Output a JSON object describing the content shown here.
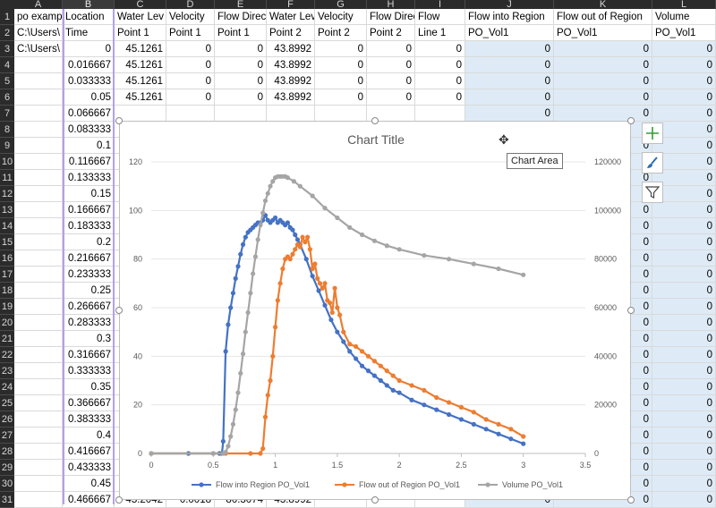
{
  "columns": [
    "A",
    "B",
    "C",
    "D",
    "E",
    "F",
    "G",
    "H",
    "I",
    "J",
    "K",
    "L"
  ],
  "row_numbers": [
    "1",
    "2",
    "3",
    "4",
    "5",
    "6",
    "7",
    "8",
    "9",
    "10",
    "11",
    "12",
    "13",
    "14",
    "15",
    "16",
    "17",
    "18",
    "19",
    "20",
    "21",
    "22",
    "23",
    "24",
    "25",
    "26",
    "27",
    "28",
    "29",
    "30",
    "31"
  ],
  "header_row1": [
    "po examp",
    "Location",
    "Water Lev",
    "Velocity",
    "Flow Direc",
    "Water Lev",
    "Velocity",
    "Flow Direc",
    "Flow",
    "Flow into Region",
    "Flow out of Region",
    "Volume"
  ],
  "header_row2": [
    "C:\\Users\\",
    "Time",
    "Point 1",
    "Point 1",
    "Point 1",
    "Point 2",
    "Point 2",
    "Point 2",
    "Line 1",
    "PO_Vol1",
    "PO_Vol1",
    "PO_Vol1"
  ],
  "row3_a": "C:\\Users\\",
  "data_rows": [
    [
      "0",
      "45.1261",
      "0",
      "0",
      "43.8992",
      "0",
      "0",
      "0",
      "0",
      "0",
      "0"
    ],
    [
      "0.016667",
      "45.1261",
      "0",
      "0",
      "43.8992",
      "0",
      "0",
      "0",
      "0",
      "0",
      "0"
    ],
    [
      "0.033333",
      "45.1261",
      "0",
      "0",
      "43.8992",
      "0",
      "0",
      "0",
      "0",
      "0",
      "0"
    ],
    [
      "0.05",
      "45.1261",
      "0",
      "0",
      "43.8992",
      "0",
      "0",
      "0",
      "0",
      "0",
      "0"
    ]
  ],
  "time_col_rest": [
    "0.066667",
    "0.083333",
    "0.1",
    "0.116667",
    "0.133333",
    "0.15",
    "0.166667",
    "0.183333",
    "0.2",
    "0.216667",
    "0.233333",
    "0.25",
    "0.266667",
    "0.283333",
    "0.3",
    "0.316667",
    "0.333333",
    "0.35",
    "0.366667",
    "0.383333",
    "0.4",
    "0.416667",
    "0.433333",
    "0.45",
    "0.466667"
  ],
  "right_col_zeros": "0",
  "last_row_partial": [
    "45.2042",
    "0.0018",
    "80.3074",
    "43.8992"
  ],
  "tooltip": "Chart Area",
  "chart_buttons": [
    "plus-icon",
    "brush-icon",
    "filter-icon"
  ],
  "chart_data": {
    "type": "line",
    "title": "Chart Title",
    "x_ticks": [
      "0",
      "0.5",
      "1",
      "1.5",
      "2",
      "2.5",
      "3",
      "3.5"
    ],
    "y_left_ticks": [
      "0",
      "20",
      "40",
      "60",
      "80",
      "100",
      "120"
    ],
    "y_right_ticks": [
      "0",
      "20000",
      "40000",
      "60000",
      "80000",
      "100000",
      "120000"
    ],
    "xlim": [
      0,
      3.5
    ],
    "ylim_left": [
      0,
      120
    ],
    "ylim_right": [
      0,
      120000
    ],
    "legend_position": "bottom",
    "series": [
      {
        "name": "Flow into Region PO_Vol1",
        "axis": "left",
        "color": "#4472c4",
        "points": [
          [
            0,
            0
          ],
          [
            0.3,
            0
          ],
          [
            0.55,
            0
          ],
          [
            0.57,
            0
          ],
          [
            0.58,
            5
          ],
          [
            0.6,
            42
          ],
          [
            0.62,
            53
          ],
          [
            0.64,
            60
          ],
          [
            0.66,
            66
          ],
          [
            0.68,
            72
          ],
          [
            0.7,
            77
          ],
          [
            0.72,
            82
          ],
          [
            0.74,
            86
          ],
          [
            0.76,
            89
          ],
          [
            0.78,
            91
          ],
          [
            0.8,
            92
          ],
          [
            0.82,
            93
          ],
          [
            0.84,
            94
          ],
          [
            0.86,
            95
          ],
          [
            0.88,
            95
          ],
          [
            0.9,
            96
          ],
          [
            0.92,
            98
          ],
          [
            0.94,
            96
          ],
          [
            0.96,
            95
          ],
          [
            0.98,
            96
          ],
          [
            1.0,
            97
          ],
          [
            1.02,
            95
          ],
          [
            1.04,
            96
          ],
          [
            1.06,
            95
          ],
          [
            1.08,
            94
          ],
          [
            1.1,
            95
          ],
          [
            1.12,
            93
          ],
          [
            1.14,
            92
          ],
          [
            1.16,
            90
          ],
          [
            1.18,
            88
          ],
          [
            1.2,
            86
          ],
          [
            1.25,
            80
          ],
          [
            1.3,
            73
          ],
          [
            1.35,
            67
          ],
          [
            1.4,
            61
          ],
          [
            1.45,
            55
          ],
          [
            1.5,
            50
          ],
          [
            1.55,
            46
          ],
          [
            1.6,
            42
          ],
          [
            1.65,
            39
          ],
          [
            1.7,
            36
          ],
          [
            1.75,
            34
          ],
          [
            1.8,
            32
          ],
          [
            1.85,
            30
          ],
          [
            1.9,
            28
          ],
          [
            1.95,
            26
          ],
          [
            2.0,
            25
          ],
          [
            2.1,
            22
          ],
          [
            2.2,
            20
          ],
          [
            2.3,
            18
          ],
          [
            2.4,
            16
          ],
          [
            2.5,
            14
          ],
          [
            2.6,
            12
          ],
          [
            2.7,
            10
          ],
          [
            2.8,
            8
          ],
          [
            2.9,
            6
          ],
          [
            3.0,
            4
          ]
        ]
      },
      {
        "name": "Flow out of Region PO_Vol1",
        "axis": "left",
        "color": "#ed7d31",
        "points": [
          [
            0,
            0
          ],
          [
            0.5,
            0
          ],
          [
            0.6,
            0
          ],
          [
            0.8,
            0
          ],
          [
            0.88,
            0
          ],
          [
            0.9,
            2
          ],
          [
            0.92,
            15
          ],
          [
            0.94,
            24
          ],
          [
            0.96,
            30
          ],
          [
            0.98,
            40
          ],
          [
            1.0,
            52
          ],
          [
            1.02,
            63
          ],
          [
            1.04,
            70
          ],
          [
            1.06,
            76
          ],
          [
            1.08,
            80
          ],
          [
            1.1,
            81
          ],
          [
            1.12,
            80
          ],
          [
            1.14,
            82
          ],
          [
            1.16,
            84
          ],
          [
            1.18,
            86
          ],
          [
            1.2,
            85
          ],
          [
            1.22,
            89
          ],
          [
            1.24,
            87
          ],
          [
            1.26,
            89
          ],
          [
            1.28,
            84
          ],
          [
            1.3,
            76
          ],
          [
            1.32,
            78
          ],
          [
            1.34,
            72
          ],
          [
            1.36,
            70
          ],
          [
            1.38,
            68
          ],
          [
            1.4,
            70
          ],
          [
            1.42,
            63
          ],
          [
            1.44,
            62
          ],
          [
            1.46,
            58
          ],
          [
            1.48,
            68
          ],
          [
            1.5,
            60
          ],
          [
            1.52,
            57
          ],
          [
            1.55,
            50
          ],
          [
            1.6,
            45
          ],
          [
            1.65,
            44
          ],
          [
            1.7,
            42
          ],
          [
            1.75,
            40
          ],
          [
            1.8,
            38
          ],
          [
            1.85,
            36
          ],
          [
            1.9,
            34
          ],
          [
            1.95,
            32
          ],
          [
            2.0,
            30
          ],
          [
            2.1,
            28
          ],
          [
            2.2,
            26
          ],
          [
            2.3,
            23
          ],
          [
            2.4,
            21
          ],
          [
            2.5,
            19
          ],
          [
            2.6,
            17
          ],
          [
            2.7,
            14
          ],
          [
            2.8,
            12
          ],
          [
            2.9,
            10
          ],
          [
            3.0,
            7
          ]
        ]
      },
      {
        "name": "Volume PO_Vol1",
        "axis": "right",
        "color": "#a5a5a5",
        "points": [
          [
            0,
            0
          ],
          [
            0.5,
            0
          ],
          [
            0.58,
            0
          ],
          [
            0.6,
            500
          ],
          [
            0.62,
            3000
          ],
          [
            0.64,
            7000
          ],
          [
            0.66,
            12000
          ],
          [
            0.68,
            18000
          ],
          [
            0.7,
            25000
          ],
          [
            0.72,
            33000
          ],
          [
            0.74,
            41000
          ],
          [
            0.76,
            50000
          ],
          [
            0.78,
            58000
          ],
          [
            0.8,
            66000
          ],
          [
            0.82,
            74000
          ],
          [
            0.84,
            81000
          ],
          [
            0.86,
            88000
          ],
          [
            0.88,
            94000
          ],
          [
            0.9,
            99000
          ],
          [
            0.92,
            104000
          ],
          [
            0.94,
            107000
          ],
          [
            0.96,
            110000
          ],
          [
            0.98,
            112000
          ],
          [
            1.0,
            113500
          ],
          [
            1.02,
            114000
          ],
          [
            1.04,
            114000
          ],
          [
            1.06,
            114000
          ],
          [
            1.08,
            114000
          ],
          [
            1.1,
            113500
          ],
          [
            1.15,
            112000
          ],
          [
            1.2,
            110000
          ],
          [
            1.3,
            106000
          ],
          [
            1.4,
            101000
          ],
          [
            1.5,
            97000
          ],
          [
            1.6,
            93000
          ],
          [
            1.7,
            90000
          ],
          [
            1.8,
            87500
          ],
          [
            1.9,
            85500
          ],
          [
            2.0,
            84000
          ],
          [
            2.2,
            81500
          ],
          [
            2.4,
            80000
          ],
          [
            2.6,
            78000
          ],
          [
            2.8,
            76000
          ],
          [
            3.0,
            73500
          ]
        ]
      }
    ]
  }
}
